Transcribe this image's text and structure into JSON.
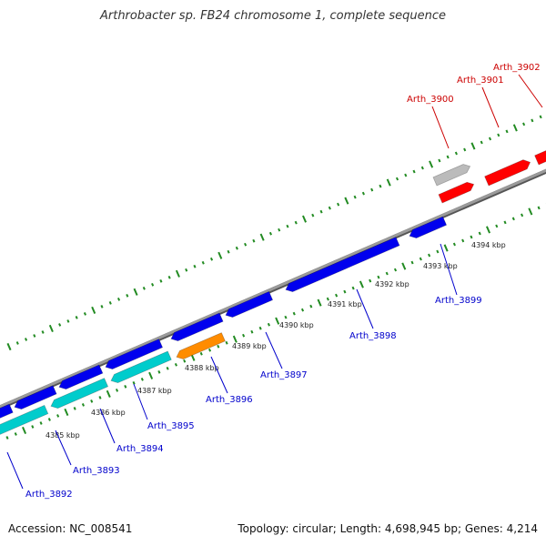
{
  "title": "Arthrobacter sp. FB24 chromosome 1, complete sequence",
  "footer": {
    "accession": "Accession: NC_008541",
    "topology": "Topology: circular; Length: 4,698,945 bp; Genes: 4,214"
  },
  "colors": {
    "backbone": "#808080",
    "tick": "#228b22",
    "forward_gene": "#ff0000",
    "forward_gene_alt": "#bbbbbb",
    "reverse_gene": "#0000ee",
    "highlight_gene": "#ff8c00",
    "operon_gene": "#00cccc",
    "forward_label": "#cc0000",
    "reverse_label": "#0000cc"
  },
  "scale_labels": [
    "4385 kbp",
    "4386 kbp",
    "4387 kbp",
    "4388 kbp",
    "4389 kbp",
    "4390 kbp",
    "4391 kbp",
    "4392 kbp",
    "4393 kbp",
    "4394 kbp"
  ],
  "forward_genes": [
    {
      "id": "Arth_3900",
      "label": "Arth_3900",
      "color": "#bbbbbb"
    },
    {
      "id": "Arth_3901",
      "label": "Arth_3901",
      "color": "#ff0000"
    },
    {
      "id": "Arth_3902",
      "label": "Arth_3902",
      "color": "#ff0000"
    }
  ],
  "reverse_genes": [
    {
      "id": "Arth_3892",
      "label": "Arth_3892"
    },
    {
      "id": "Arth_3893",
      "label": "Arth_3893"
    },
    {
      "id": "Arth_3894",
      "label": "Arth_3894"
    },
    {
      "id": "Arth_3895",
      "label": "Arth_3895"
    },
    {
      "id": "Arth_3896",
      "label": "Arth_3896"
    },
    {
      "id": "Arth_3897",
      "label": "Arth_3897"
    },
    {
      "id": "Arth_3898",
      "label": "Arth_3898"
    },
    {
      "id": "Arth_3899",
      "label": "Arth_3899"
    }
  ]
}
